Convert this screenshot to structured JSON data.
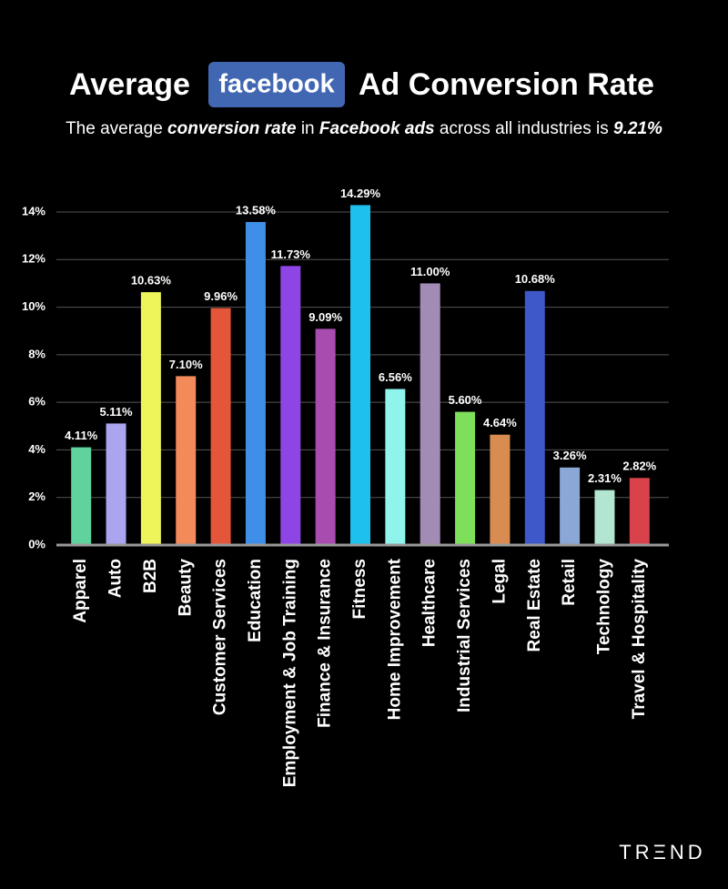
{
  "chart_data": {
    "type": "bar",
    "title": {
      "before": "Average",
      "logo": "facebook",
      "after": "Ad Conversion Rate"
    },
    "subtitle": [
      {
        "text": "The average "
      },
      {
        "text": "conversion rate",
        "emphasis": true
      },
      {
        "text": " in "
      },
      {
        "text": "Facebook ads",
        "emphasis": true
      },
      {
        "text": " across all industries is "
      },
      {
        "text": "9.21%",
        "emphasis": true
      }
    ],
    "categories": [
      "Apparel",
      "Auto",
      "B2B",
      "Beauty",
      "Customer Services",
      "Education",
      "Employment & Job Training",
      "Finance & Insurance",
      "Fitness",
      "Home Improvement",
      "Healthcare",
      "Industrial Services",
      "Legal",
      "Real Estate",
      "Retail",
      "Technology",
      "Travel & Hospitality"
    ],
    "values": [
      4.11,
      5.11,
      10.63,
      7.1,
      9.96,
      13.58,
      11.73,
      9.09,
      14.29,
      6.56,
      11.0,
      5.6,
      4.64,
      10.68,
      3.26,
      2.31,
      2.82
    ],
    "value_labels": [
      "4.11%",
      "5.11%",
      "10.63%",
      "7.10%",
      "9.96%",
      "13.58%",
      "11.73%",
      "9.09%",
      "14.29%",
      "6.56%",
      "11.00%",
      "5.60%",
      "4.64%",
      "10.68%",
      "3.26%",
      "2.31%",
      "2.82%"
    ],
    "colors": [
      "#5fd39b",
      "#a9a6ef",
      "#eef55a",
      "#f38a5a",
      "#e5553a",
      "#3f8fe8",
      "#8e45e6",
      "#a84cb0",
      "#1ec1ee",
      "#8ff5ec",
      "#a28bb5",
      "#7ee05a",
      "#d98c52",
      "#3e57c9",
      "#8aa7d6",
      "#b3e6d0",
      "#d9424a"
    ],
    "ylim": [
      0,
      14
    ],
    "yticks": [
      {
        "value": 0,
        "label": "0%"
      },
      {
        "value": 2,
        "label": "2%"
      },
      {
        "value": 4,
        "label": "4%"
      },
      {
        "value": 6,
        "label": "6%"
      },
      {
        "value": 8,
        "label": "8%"
      },
      {
        "value": 10,
        "label": "10%"
      },
      {
        "value": 12,
        "label": "12%"
      },
      {
        "value": 14,
        "label": "14%"
      }
    ],
    "grid": true,
    "brand": "TRΞND"
  }
}
